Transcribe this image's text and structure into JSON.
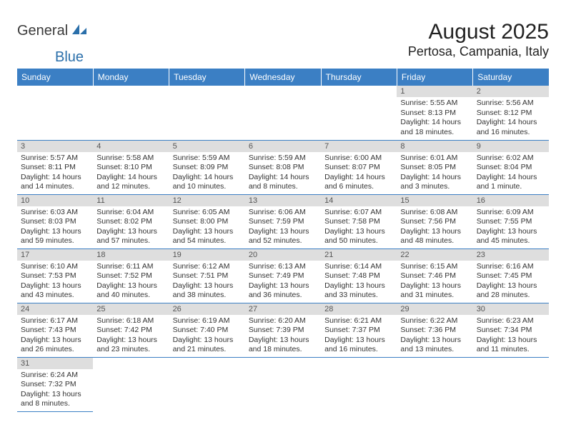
{
  "logo": {
    "text_general": "General",
    "text_blue": "Blue"
  },
  "title": {
    "month": "August 2025",
    "location": "Pertosa, Campania, Italy"
  },
  "colors": {
    "header_bg": "#3b7fc4",
    "header_text": "#ffffff",
    "day_bar_bg": "#dedede",
    "day_bar_text": "#555555",
    "body_text": "#333333",
    "border": "#3b7fc4"
  },
  "weekdays": [
    "Sunday",
    "Monday",
    "Tuesday",
    "Wednesday",
    "Thursday",
    "Friday",
    "Saturday"
  ],
  "weeks": [
    [
      null,
      null,
      null,
      null,
      null,
      {
        "day": "1",
        "sunrise": "Sunrise: 5:55 AM",
        "sunset": "Sunset: 8:13 PM",
        "daylight": "Daylight: 14 hours and 18 minutes."
      },
      {
        "day": "2",
        "sunrise": "Sunrise: 5:56 AM",
        "sunset": "Sunset: 8:12 PM",
        "daylight": "Daylight: 14 hours and 16 minutes."
      }
    ],
    [
      {
        "day": "3",
        "sunrise": "Sunrise: 5:57 AM",
        "sunset": "Sunset: 8:11 PM",
        "daylight": "Daylight: 14 hours and 14 minutes."
      },
      {
        "day": "4",
        "sunrise": "Sunrise: 5:58 AM",
        "sunset": "Sunset: 8:10 PM",
        "daylight": "Daylight: 14 hours and 12 minutes."
      },
      {
        "day": "5",
        "sunrise": "Sunrise: 5:59 AM",
        "sunset": "Sunset: 8:09 PM",
        "daylight": "Daylight: 14 hours and 10 minutes."
      },
      {
        "day": "6",
        "sunrise": "Sunrise: 5:59 AM",
        "sunset": "Sunset: 8:08 PM",
        "daylight": "Daylight: 14 hours and 8 minutes."
      },
      {
        "day": "7",
        "sunrise": "Sunrise: 6:00 AM",
        "sunset": "Sunset: 8:07 PM",
        "daylight": "Daylight: 14 hours and 6 minutes."
      },
      {
        "day": "8",
        "sunrise": "Sunrise: 6:01 AM",
        "sunset": "Sunset: 8:05 PM",
        "daylight": "Daylight: 14 hours and 3 minutes."
      },
      {
        "day": "9",
        "sunrise": "Sunrise: 6:02 AM",
        "sunset": "Sunset: 8:04 PM",
        "daylight": "Daylight: 14 hours and 1 minute."
      }
    ],
    [
      {
        "day": "10",
        "sunrise": "Sunrise: 6:03 AM",
        "sunset": "Sunset: 8:03 PM",
        "daylight": "Daylight: 13 hours and 59 minutes."
      },
      {
        "day": "11",
        "sunrise": "Sunrise: 6:04 AM",
        "sunset": "Sunset: 8:02 PM",
        "daylight": "Daylight: 13 hours and 57 minutes."
      },
      {
        "day": "12",
        "sunrise": "Sunrise: 6:05 AM",
        "sunset": "Sunset: 8:00 PM",
        "daylight": "Daylight: 13 hours and 54 minutes."
      },
      {
        "day": "13",
        "sunrise": "Sunrise: 6:06 AM",
        "sunset": "Sunset: 7:59 PM",
        "daylight": "Daylight: 13 hours and 52 minutes."
      },
      {
        "day": "14",
        "sunrise": "Sunrise: 6:07 AM",
        "sunset": "Sunset: 7:58 PM",
        "daylight": "Daylight: 13 hours and 50 minutes."
      },
      {
        "day": "15",
        "sunrise": "Sunrise: 6:08 AM",
        "sunset": "Sunset: 7:56 PM",
        "daylight": "Daylight: 13 hours and 48 minutes."
      },
      {
        "day": "16",
        "sunrise": "Sunrise: 6:09 AM",
        "sunset": "Sunset: 7:55 PM",
        "daylight": "Daylight: 13 hours and 45 minutes."
      }
    ],
    [
      {
        "day": "17",
        "sunrise": "Sunrise: 6:10 AM",
        "sunset": "Sunset: 7:53 PM",
        "daylight": "Daylight: 13 hours and 43 minutes."
      },
      {
        "day": "18",
        "sunrise": "Sunrise: 6:11 AM",
        "sunset": "Sunset: 7:52 PM",
        "daylight": "Daylight: 13 hours and 40 minutes."
      },
      {
        "day": "19",
        "sunrise": "Sunrise: 6:12 AM",
        "sunset": "Sunset: 7:51 PM",
        "daylight": "Daylight: 13 hours and 38 minutes."
      },
      {
        "day": "20",
        "sunrise": "Sunrise: 6:13 AM",
        "sunset": "Sunset: 7:49 PM",
        "daylight": "Daylight: 13 hours and 36 minutes."
      },
      {
        "day": "21",
        "sunrise": "Sunrise: 6:14 AM",
        "sunset": "Sunset: 7:48 PM",
        "daylight": "Daylight: 13 hours and 33 minutes."
      },
      {
        "day": "22",
        "sunrise": "Sunrise: 6:15 AM",
        "sunset": "Sunset: 7:46 PM",
        "daylight": "Daylight: 13 hours and 31 minutes."
      },
      {
        "day": "23",
        "sunrise": "Sunrise: 6:16 AM",
        "sunset": "Sunset: 7:45 PM",
        "daylight": "Daylight: 13 hours and 28 minutes."
      }
    ],
    [
      {
        "day": "24",
        "sunrise": "Sunrise: 6:17 AM",
        "sunset": "Sunset: 7:43 PM",
        "daylight": "Daylight: 13 hours and 26 minutes."
      },
      {
        "day": "25",
        "sunrise": "Sunrise: 6:18 AM",
        "sunset": "Sunset: 7:42 PM",
        "daylight": "Daylight: 13 hours and 23 minutes."
      },
      {
        "day": "26",
        "sunrise": "Sunrise: 6:19 AM",
        "sunset": "Sunset: 7:40 PM",
        "daylight": "Daylight: 13 hours and 21 minutes."
      },
      {
        "day": "27",
        "sunrise": "Sunrise: 6:20 AM",
        "sunset": "Sunset: 7:39 PM",
        "daylight": "Daylight: 13 hours and 18 minutes."
      },
      {
        "day": "28",
        "sunrise": "Sunrise: 6:21 AM",
        "sunset": "Sunset: 7:37 PM",
        "daylight": "Daylight: 13 hours and 16 minutes."
      },
      {
        "day": "29",
        "sunrise": "Sunrise: 6:22 AM",
        "sunset": "Sunset: 7:36 PM",
        "daylight": "Daylight: 13 hours and 13 minutes."
      },
      {
        "day": "30",
        "sunrise": "Sunrise: 6:23 AM",
        "sunset": "Sunset: 7:34 PM",
        "daylight": "Daylight: 13 hours and 11 minutes."
      }
    ],
    [
      {
        "day": "31",
        "sunrise": "Sunrise: 6:24 AM",
        "sunset": "Sunset: 7:32 PM",
        "daylight": "Daylight: 13 hours and 8 minutes."
      },
      null,
      null,
      null,
      null,
      null,
      null
    ]
  ]
}
